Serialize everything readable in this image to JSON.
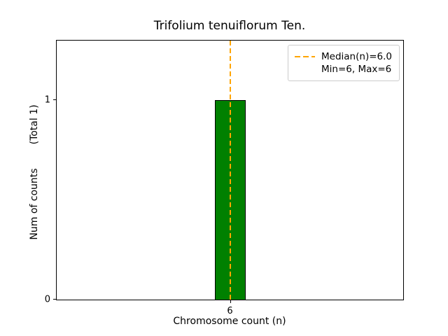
{
  "chart_data": {
    "type": "bar",
    "title": "Trifolium tenuiflorum Ten.",
    "categories": [
      6
    ],
    "values": [
      1
    ],
    "xlabel": "Chromosome count (n)",
    "ylabel": "Num of counts",
    "ylabel_total": "(Total 1)",
    "ylim": [
      0,
      1.3
    ],
    "yticks": [
      "0",
      "1"
    ],
    "ytick_values": [
      0,
      1
    ],
    "xticks": [
      "6"
    ],
    "bar_color": "#008000",
    "bar_edge_color": "#000000",
    "median_line": {
      "value": 6.0,
      "color": "#ffa500",
      "style": "dashed"
    },
    "legend": {
      "position": "upper right",
      "entries": [
        {
          "label": "Median(n)=6.0",
          "handle": "dashed-orange-line"
        },
        {
          "label": "Min=6, Max=6",
          "handle": "none"
        }
      ]
    },
    "grid": false,
    "total_counts": 1
  }
}
